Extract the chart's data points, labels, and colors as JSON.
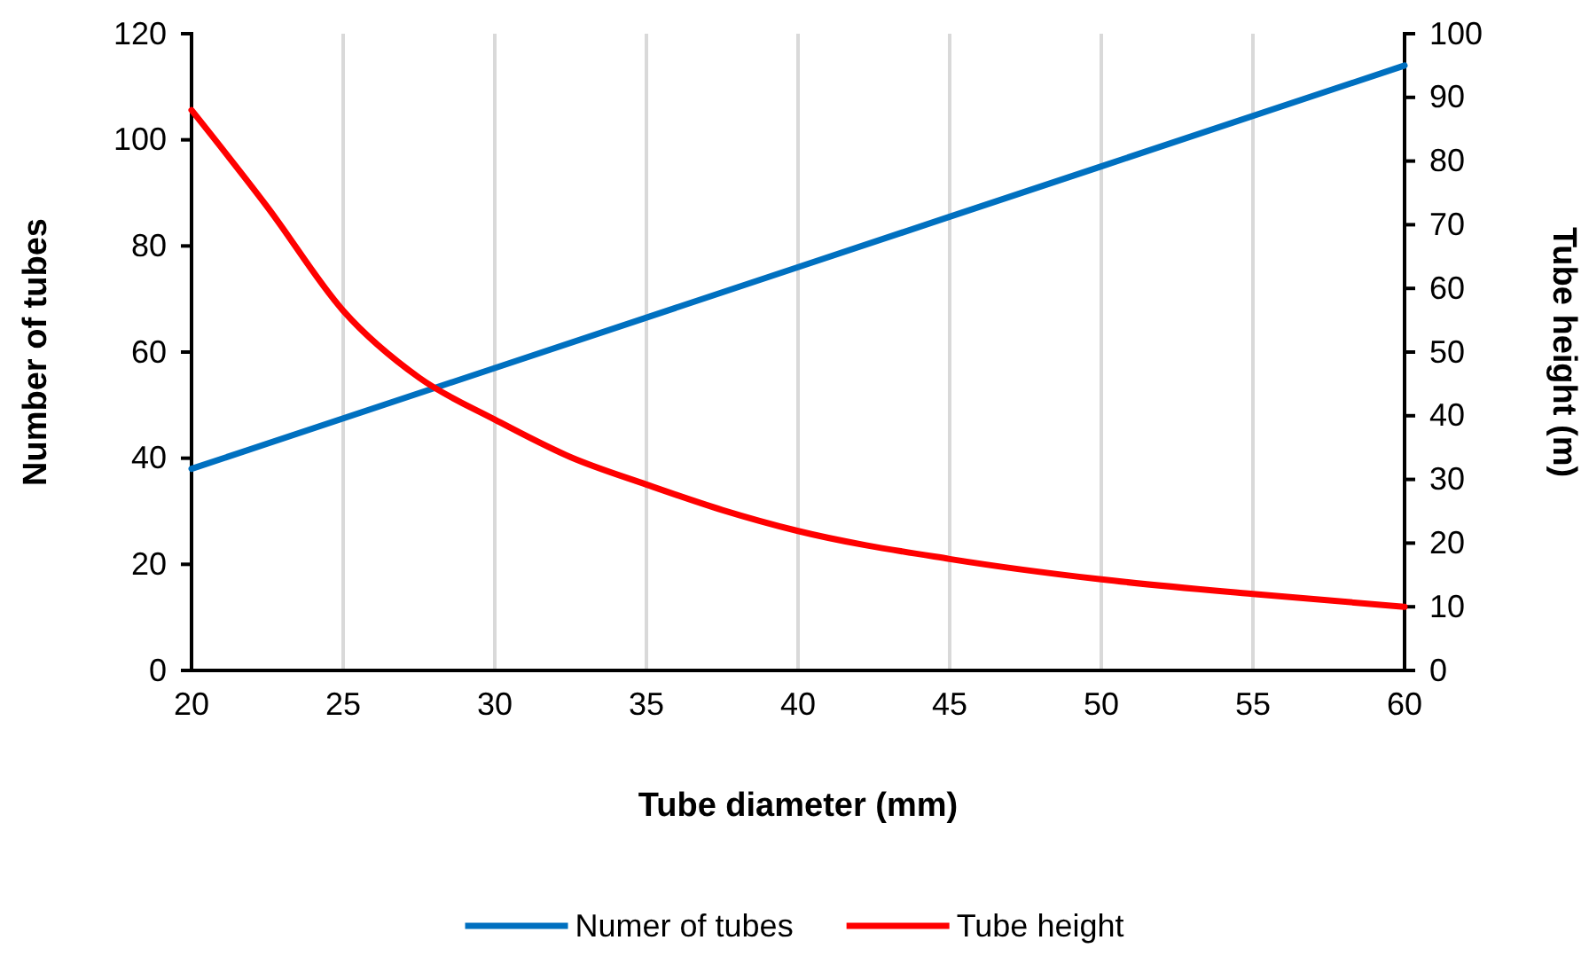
{
  "chart_data": {
    "type": "line",
    "xlabel": "Tube diameter (mm)",
    "ylabel": "Number of tubes",
    "y2label": "Tube height (m)",
    "xlim": [
      20,
      60
    ],
    "xticks": [
      20,
      25,
      30,
      35,
      40,
      45,
      50,
      55,
      60
    ],
    "ylim": [
      0,
      120
    ],
    "yticks": [
      0,
      20,
      40,
      60,
      80,
      100,
      120
    ],
    "y2lim": [
      0,
      100
    ],
    "y2ticks": [
      0,
      10,
      20,
      30,
      40,
      50,
      60,
      70,
      80,
      90,
      100
    ],
    "grid": "x",
    "legend": "bottom",
    "marker": "none",
    "line_style": "solid",
    "series": [
      {
        "name": "Numer of tubes",
        "color": "#0070c0",
        "x": [
          20,
          30,
          40,
          50,
          60
        ],
        "values": [
          38,
          57,
          76,
          95,
          114
        ]
      },
      {
        "name": "Tube height",
        "color": "#ff0000",
        "axis": "y2",
        "x": [
          20,
          22.5,
          25,
          27.5,
          30,
          32.5,
          35,
          37.5,
          40,
          45,
          50,
          55,
          60
        ],
        "values": [
          88,
          72.8,
          56.5,
          46,
          39.4,
          33.5,
          29.2,
          25.2,
          21.9,
          17.5,
          14.3,
          12,
          10
        ]
      }
    ]
  }
}
